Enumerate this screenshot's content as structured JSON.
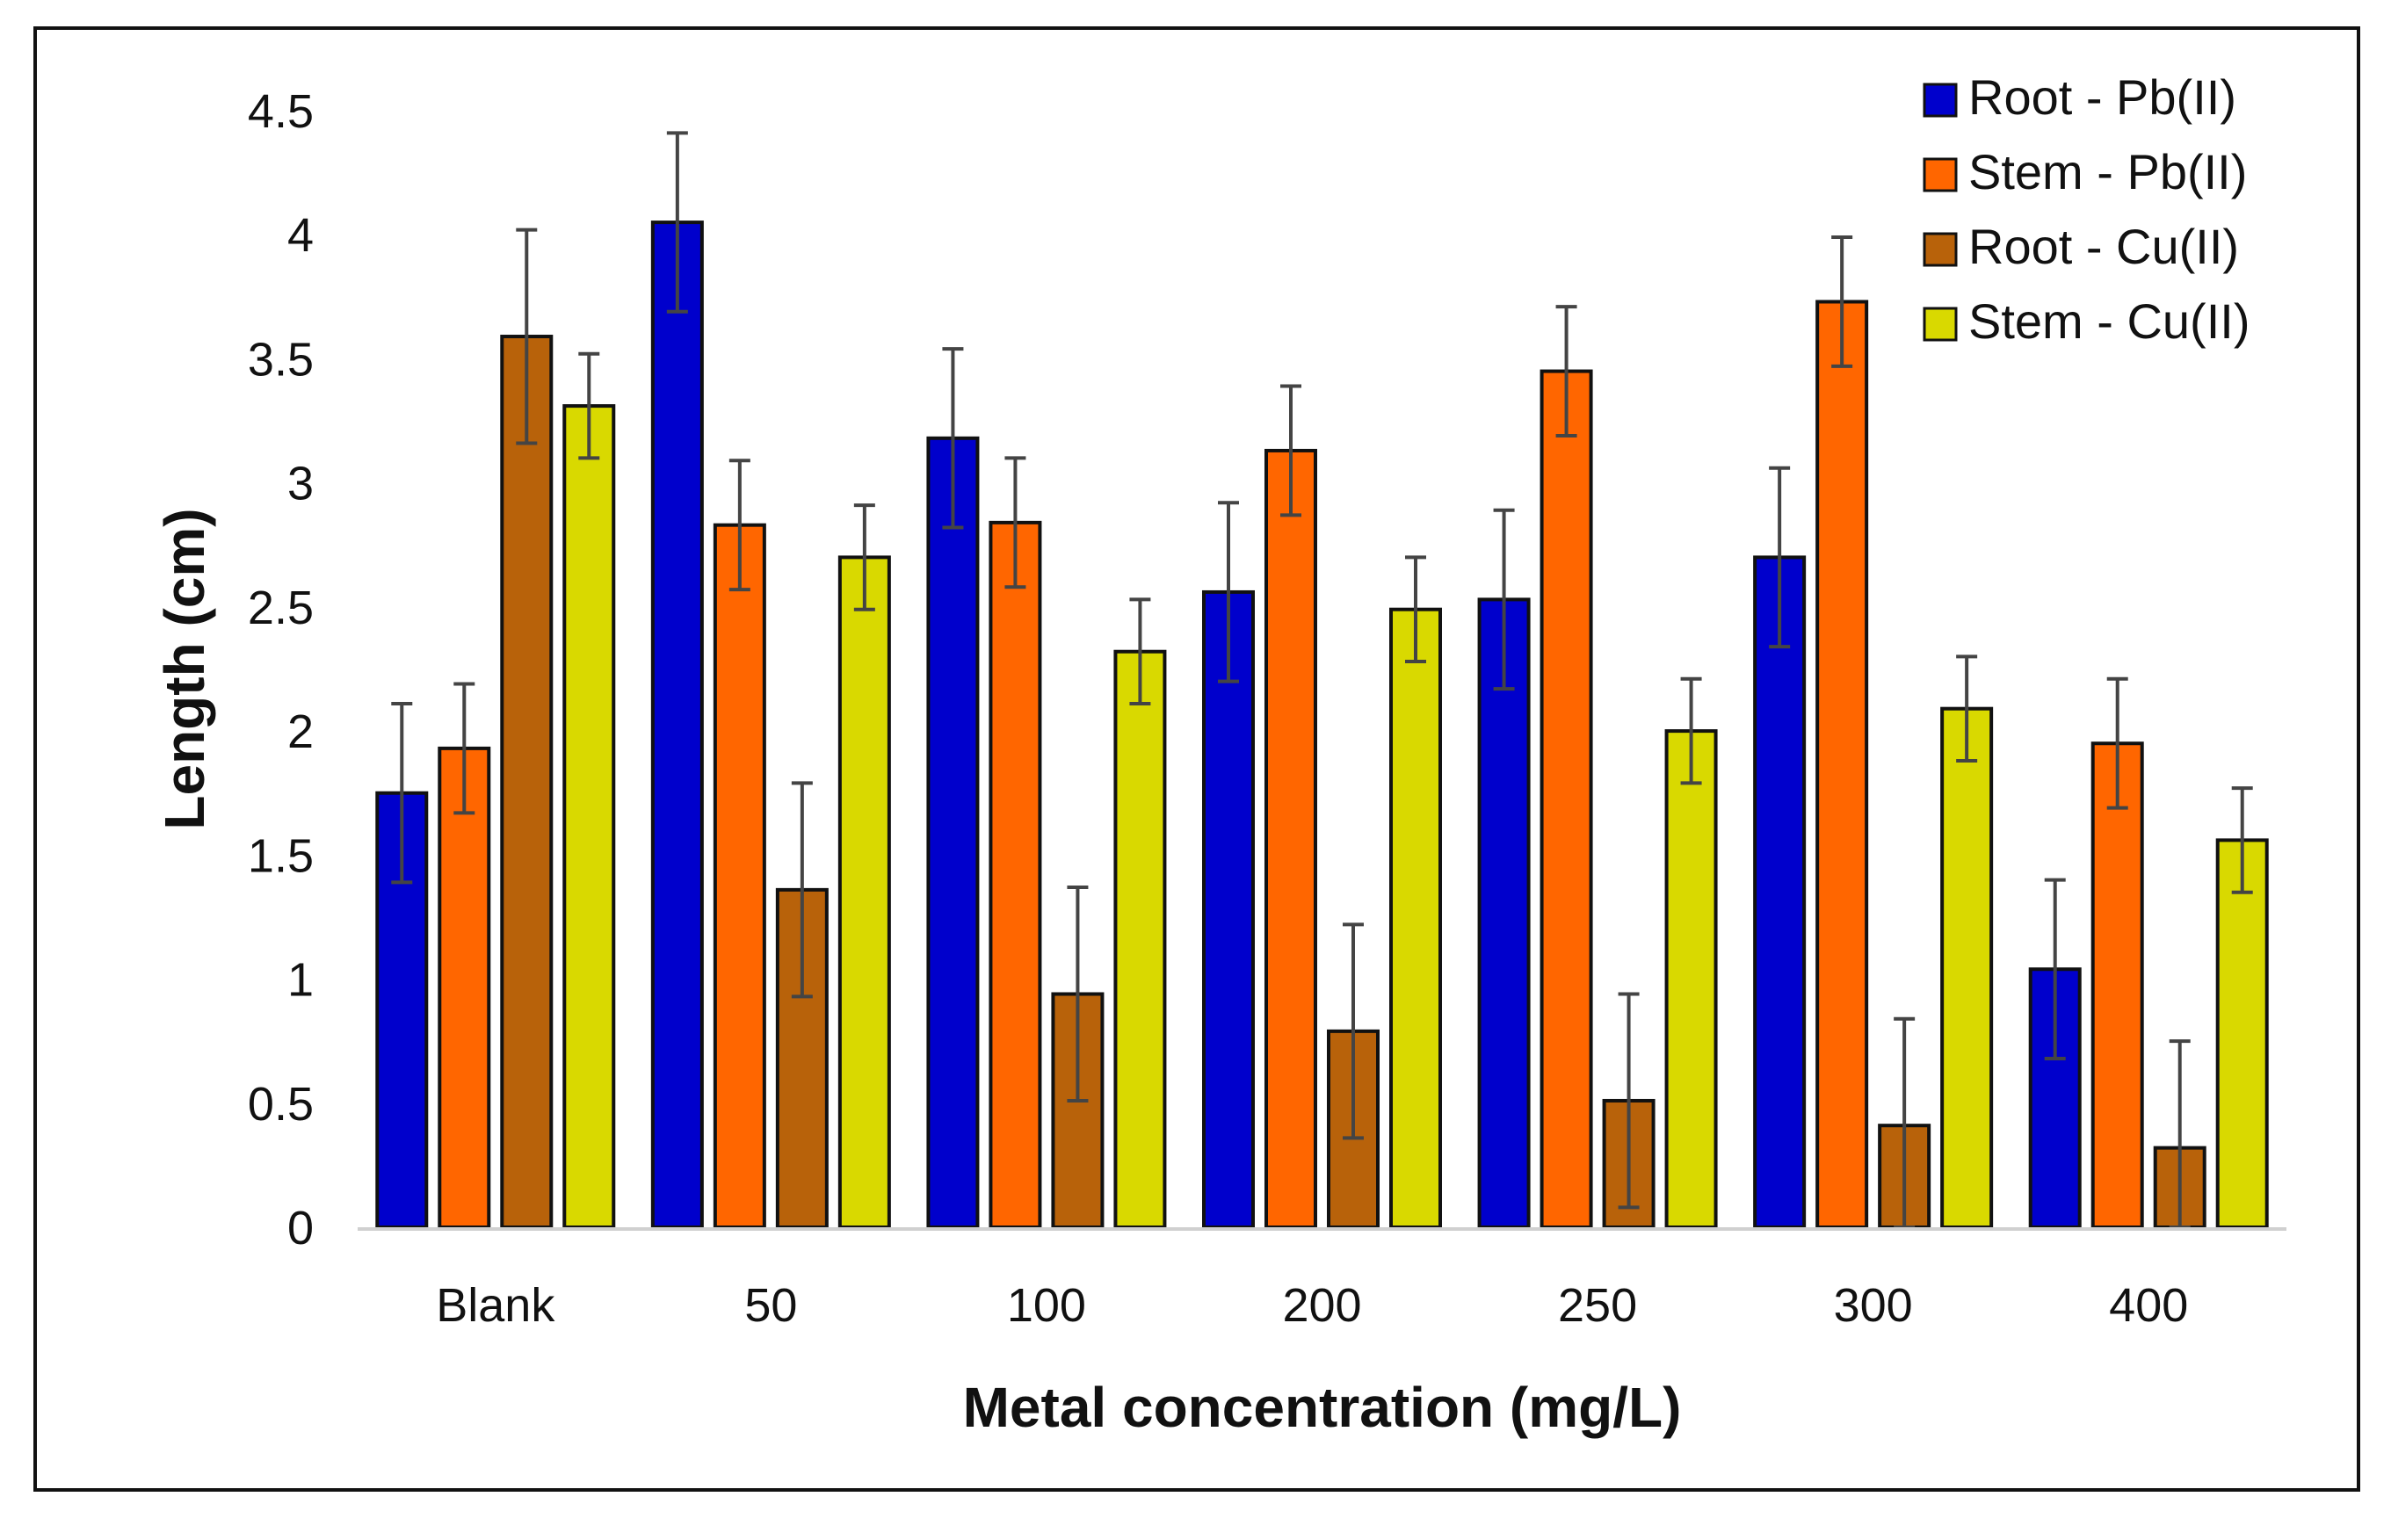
{
  "chart_data": {
    "type": "bar",
    "title": "",
    "xlabel": "Metal concentration (mg/L)",
    "ylabel": "Length (cm)",
    "ylim": [
      0,
      4.5
    ],
    "ytick_step": 0.5,
    "grid": false,
    "legend_position": "top-right",
    "categories": [
      "Blank",
      "50",
      "100",
      "200",
      "250",
      "300",
      "400"
    ],
    "y_tick_labels": [
      "0",
      "0.5",
      "1",
      "1.5",
      "2",
      "2.5",
      "3",
      "3.5",
      "4",
      "4.5"
    ],
    "series": [
      {
        "name": "Root - Pb(II)",
        "color": "#0000cc",
        "values": [
          1.75,
          4.05,
          3.18,
          2.56,
          2.53,
          2.7,
          1.04
        ],
        "errors": [
          0.36,
          0.36,
          0.36,
          0.36,
          0.36,
          0.36,
          0.36
        ]
      },
      {
        "name": "Stem - Pb(II)",
        "color": "#ff6600",
        "values": [
          1.93,
          2.83,
          2.84,
          3.13,
          3.45,
          3.73,
          1.95
        ],
        "errors": [
          0.26,
          0.26,
          0.26,
          0.26,
          0.26,
          0.26,
          0.26
        ]
      },
      {
        "name": "Root - Cu(II)",
        "color": "#b8620a",
        "values": [
          3.59,
          1.36,
          0.94,
          0.79,
          0.51,
          0.41,
          0.32
        ],
        "errors": [
          0.43,
          0.43,
          0.43,
          0.43,
          0.43,
          0.43,
          0.43
        ]
      },
      {
        "name": "Stem - Cu(II)",
        "color": "#d9d900",
        "values": [
          3.31,
          2.7,
          2.32,
          2.49,
          2.0,
          2.09,
          1.56
        ],
        "errors": [
          0.21,
          0.21,
          0.21,
          0.21,
          0.21,
          0.21,
          0.21
        ]
      }
    ]
  }
}
